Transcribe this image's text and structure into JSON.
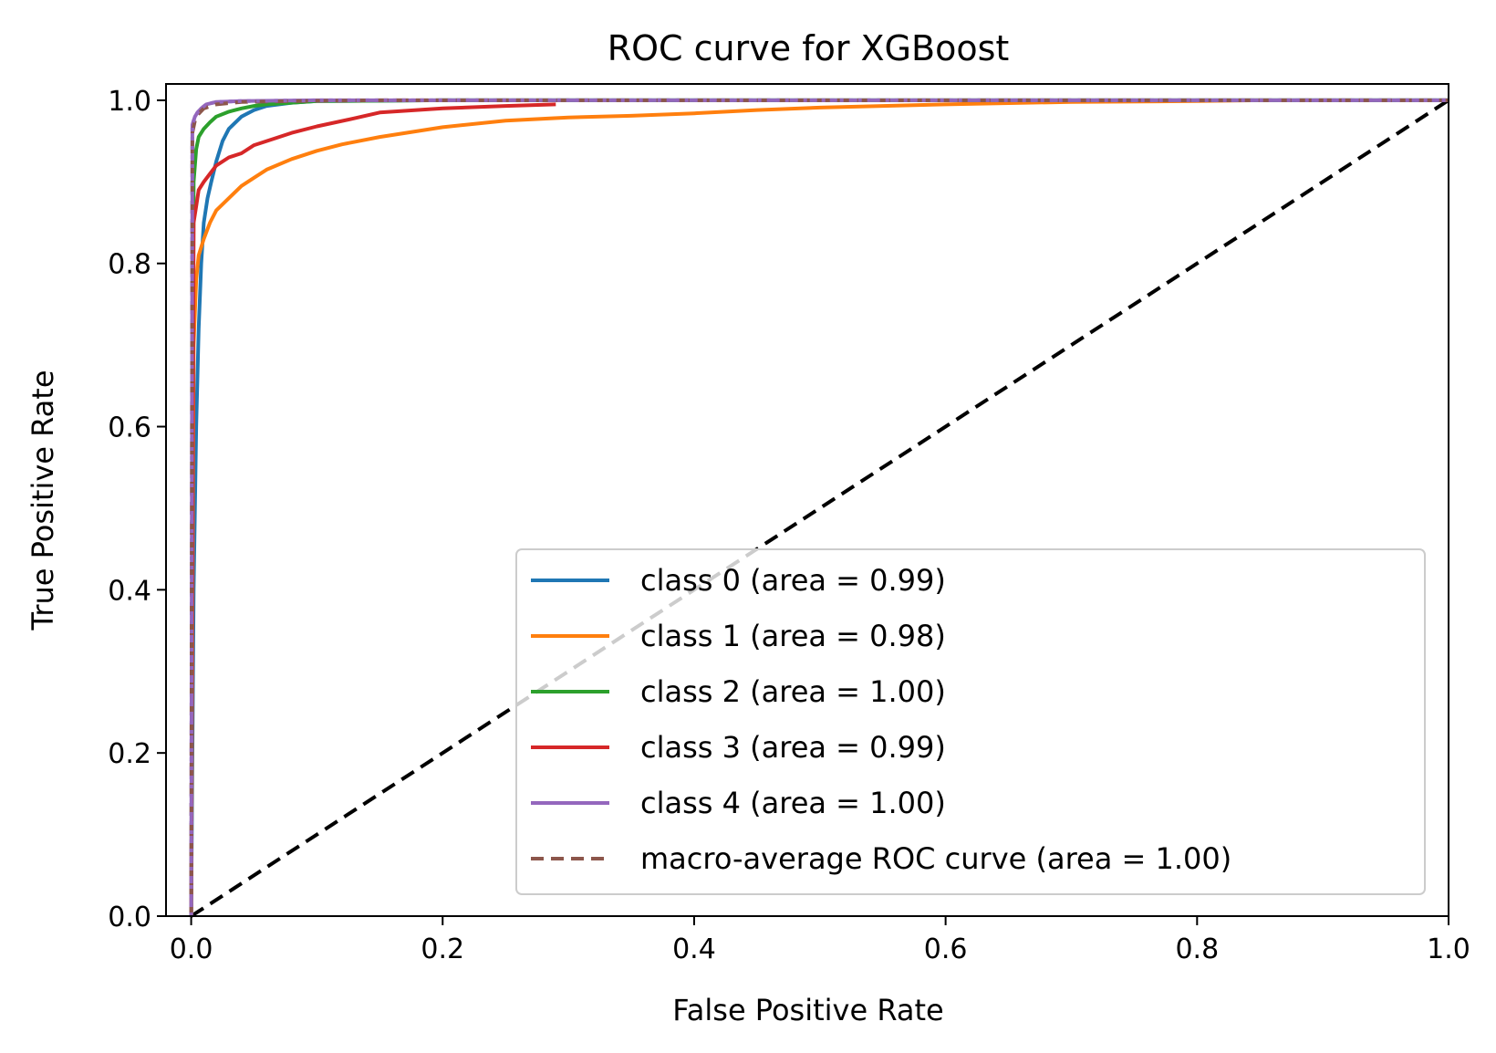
{
  "chart_data": {
    "type": "line",
    "title": "ROC curve for XGBoost",
    "xlabel": "False Positive Rate",
    "ylabel": "True Positive Rate",
    "xlim": [
      -0.02,
      1.0
    ],
    "ylim": [
      0.0,
      1.02
    ],
    "x_ticks": [
      "0.0",
      "0.2",
      "0.4",
      "0.6",
      "0.8",
      "1.0"
    ],
    "y_ticks": [
      "0.0",
      "0.2",
      "0.4",
      "0.6",
      "0.8",
      "1.0"
    ],
    "legend_position": "lower-right",
    "grid": false,
    "series": [
      {
        "name": "class 0 (area = 0.99)",
        "color": "#1f77b4",
        "style": "solid",
        "x": [
          0,
          0.002,
          0.004,
          0.006,
          0.008,
          0.01,
          0.013,
          0.016,
          0.02,
          0.025,
          0.03,
          0.04,
          0.05,
          0.06,
          0.08,
          0.1,
          0.2,
          0.4,
          0.6,
          0.8,
          1.0
        ],
        "y": [
          0,
          0.4,
          0.6,
          0.72,
          0.8,
          0.85,
          0.88,
          0.9,
          0.925,
          0.95,
          0.965,
          0.98,
          0.988,
          0.993,
          0.997,
          0.999,
          1.0,
          1.0,
          1.0,
          1.0,
          1.0
        ]
      },
      {
        "name": "class 1 (area = 0.98)",
        "color": "#ff7f0e",
        "style": "solid",
        "x": [
          0,
          0.002,
          0.004,
          0.006,
          0.01,
          0.015,
          0.02,
          0.03,
          0.04,
          0.05,
          0.06,
          0.08,
          0.1,
          0.12,
          0.15,
          0.2,
          0.25,
          0.3,
          0.35,
          0.4,
          0.45,
          0.5,
          0.55,
          0.6,
          0.7,
          0.8,
          0.85
        ],
        "y": [
          0,
          0.7,
          0.78,
          0.81,
          0.83,
          0.85,
          0.865,
          0.88,
          0.895,
          0.905,
          0.915,
          0.928,
          0.938,
          0.946,
          0.955,
          0.967,
          0.975,
          0.979,
          0.981,
          0.984,
          0.988,
          0.991,
          0.993,
          0.995,
          0.998,
          0.999,
          1.0
        ]
      },
      {
        "name": "class 2 (area = 1.00)",
        "color": "#2ca02c",
        "style": "solid",
        "x": [
          0,
          0.002,
          0.004,
          0.006,
          0.01,
          0.015,
          0.02,
          0.03,
          0.04,
          0.05,
          0.06,
          0.08,
          0.1,
          0.2,
          0.4,
          0.6,
          0.8,
          1.0
        ],
        "y": [
          0,
          0.9,
          0.94,
          0.955,
          0.965,
          0.973,
          0.98,
          0.986,
          0.99,
          0.993,
          0.995,
          0.997,
          0.999,
          1.0,
          1.0,
          1.0,
          1.0,
          1.0
        ]
      },
      {
        "name": "class 3 (area = 0.99)",
        "color": "#d62728",
        "style": "solid",
        "x": [
          0,
          0.002,
          0.004,
          0.006,
          0.01,
          0.015,
          0.02,
          0.03,
          0.04,
          0.05,
          0.06,
          0.08,
          0.1,
          0.13,
          0.15,
          0.2,
          0.25,
          0.29
        ],
        "y": [
          0,
          0.85,
          0.87,
          0.89,
          0.9,
          0.91,
          0.92,
          0.93,
          0.935,
          0.945,
          0.95,
          0.96,
          0.968,
          0.978,
          0.985,
          0.99,
          0.993,
          0.995
        ]
      },
      {
        "name": "class 4 (area = 1.00)",
        "color": "#9467bd",
        "style": "solid",
        "x": [
          0,
          0.001,
          0.003,
          0.005,
          0.008,
          0.012,
          0.02,
          0.04,
          0.1,
          0.4,
          0.7,
          1.0
        ],
        "y": [
          0,
          0.97,
          0.98,
          0.985,
          0.99,
          0.995,
          0.998,
          0.999,
          1.0,
          1.0,
          1.0,
          1.0
        ]
      },
      {
        "name": "macro-average ROC curve (area = 1.00)",
        "color": "#8c564b",
        "style": "dashed",
        "x": [
          0,
          0.001,
          0.003,
          0.005,
          0.01,
          0.02,
          0.04,
          0.08,
          0.15,
          0.3,
          0.6,
          1.0
        ],
        "y": [
          0,
          0.96,
          0.975,
          0.982,
          0.99,
          0.995,
          0.998,
          0.999,
          1.0,
          1.0,
          1.0,
          1.0
        ]
      }
    ],
    "diagonal": {
      "x": [
        0,
        1
      ],
      "y": [
        0,
        1
      ],
      "color": "#000000",
      "style": "dashed"
    }
  }
}
